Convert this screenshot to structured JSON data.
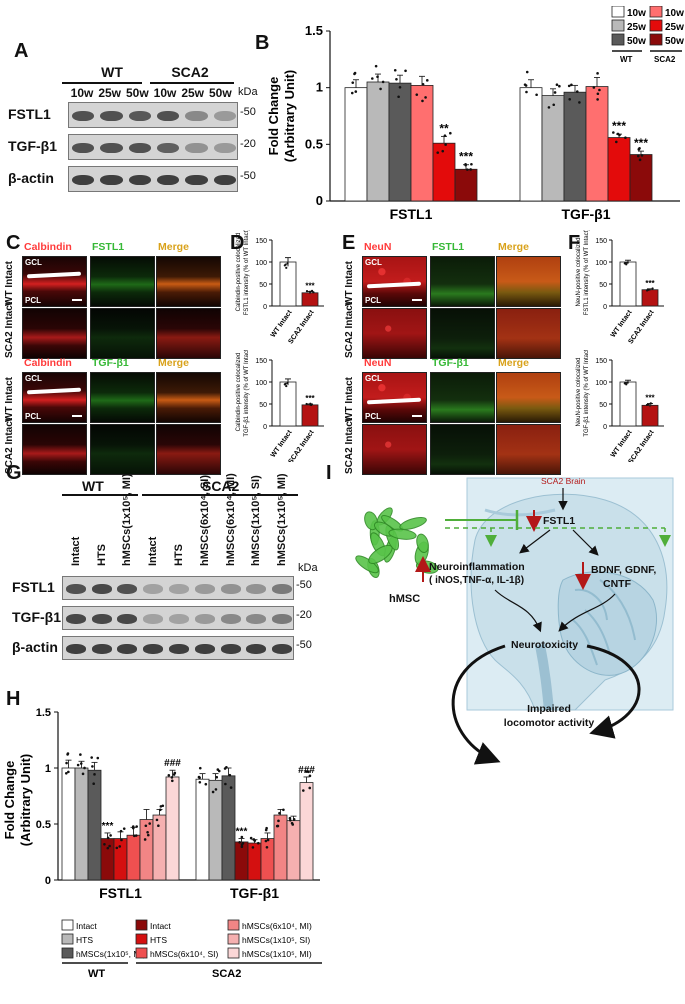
{
  "panel_letters": {
    "A": "A",
    "B": "B",
    "C": "C",
    "D": "D",
    "E": "E",
    "F": "F",
    "G": "G",
    "H": "H",
    "I": "I"
  },
  "blot_a": {
    "group_wt": "WT",
    "group_sca2": "SCA2",
    "lanes": [
      "10w",
      "25w",
      "50w",
      "10w",
      "25w",
      "50w"
    ],
    "kda": "kDa",
    "rows": [
      {
        "label": "FSTL1",
        "mw": "50",
        "bands": [
          0.8,
          0.8,
          0.75,
          0.8,
          0.45,
          0.35
        ]
      },
      {
        "label": "TGF-β1",
        "mw": "20",
        "bands": [
          0.8,
          0.8,
          0.8,
          0.7,
          0.4,
          0.35
        ]
      },
      {
        "label": "β-actin",
        "mw": "50",
        "bands": [
          0.9,
          0.9,
          0.9,
          0.9,
          0.9,
          0.9
        ]
      }
    ]
  },
  "chart_b": {
    "ylabel_1": "Fold Change",
    "ylabel_2": "(Arbitrary Unit)",
    "yticks": [
      "0",
      "0.5",
      "1",
      "1.5"
    ],
    "legend_wt": "WT",
    "legend_sca2": "SCA2",
    "legend": [
      {
        "label": "10w",
        "color": "#ffffff"
      },
      {
        "label": "25w",
        "color": "#b9b9b9"
      },
      {
        "label": "50w",
        "color": "#5a5a5a"
      },
      {
        "label": "10w",
        "color": "#ff6f6f"
      },
      {
        "label": "25w",
        "color": "#e30b0b"
      },
      {
        "label": "50w",
        "color": "#8b0a0a"
      }
    ]
  },
  "chart_data": [
    {
      "type": "bar",
      "id": "B",
      "categories": [
        "FSTL1",
        "TGF-β1"
      ],
      "ylim": [
        0,
        1.5
      ],
      "ylabel": "Fold Change (Arbitrary Unit)",
      "series": [
        {
          "name": "WT 10w",
          "color": "#ffffff",
          "values": [
            1.0,
            1.0
          ],
          "err": [
            0.07,
            0.07
          ]
        },
        {
          "name": "WT 25w",
          "color": "#b9b9b9",
          "values": [
            1.05,
            0.93
          ],
          "err": [
            0.07,
            0.06
          ]
        },
        {
          "name": "WT 50w",
          "color": "#5a5a5a",
          "values": [
            1.04,
            0.96
          ],
          "err": [
            0.07,
            0.06
          ]
        },
        {
          "name": "SCA2 10w",
          "color": "#ff6f6f",
          "values": [
            1.02,
            1.01
          ],
          "err": [
            0.08,
            0.08
          ]
        },
        {
          "name": "SCA2 25w",
          "color": "#e30b0b",
          "values": [
            0.51,
            0.56
          ],
          "err": [
            0.06,
            0.03
          ]
        },
        {
          "name": "SCA2 50w",
          "color": "#8b0a0a",
          "values": [
            0.28,
            0.41
          ],
          "err": [
            0.04,
            0.03
          ]
        }
      ],
      "significance": [
        {
          "category": 0,
          "series": 4,
          "mark": "**"
        },
        {
          "category": 0,
          "series": 5,
          "mark": "***"
        },
        {
          "category": 1,
          "series": 4,
          "mark": "***"
        },
        {
          "category": 1,
          "series": 5,
          "mark": "***"
        }
      ]
    },
    {
      "type": "bar",
      "id": "D-top",
      "categories": [
        "WT Intact",
        "SCA2 Intact"
      ],
      "values": [
        100,
        30
      ],
      "err": [
        10,
        3
      ],
      "colors": [
        "#ffffff",
        "#b41212"
      ],
      "ylim": [
        0,
        150
      ],
      "yticks": [
        "0",
        "50",
        "100",
        "150"
      ],
      "mark": "***"
    },
    {
      "type": "bar",
      "id": "D-bottom",
      "categories": [
        "WT Intact",
        "SCA2 Intact"
      ],
      "values": [
        100,
        48
      ],
      "err": [
        7,
        2
      ],
      "colors": [
        "#ffffff",
        "#b41212"
      ],
      "ylim": [
        0,
        150
      ],
      "yticks": [
        "0",
        "50",
        "100",
        "150"
      ],
      "mark": "***"
    },
    {
      "type": "bar",
      "id": "F-top",
      "categories": [
        "WT Intact",
        "SCA2 Intact"
      ],
      "values": [
        100,
        37
      ],
      "err": [
        4,
        2
      ],
      "colors": [
        "#ffffff",
        "#b41212"
      ],
      "ylim": [
        0,
        150
      ],
      "yticks": [
        "0",
        "50",
        "100",
        "150"
      ],
      "mark": "***"
    },
    {
      "type": "bar",
      "id": "F-bottom",
      "categories": [
        "WT Intact",
        "SCA2 Intact"
      ],
      "values": [
        100,
        47
      ],
      "err": [
        4,
        4
      ],
      "colors": [
        "#ffffff",
        "#b41212"
      ],
      "ylim": [
        0,
        150
      ],
      "yticks": [
        "0",
        "50",
        "100",
        "150"
      ],
      "mark": "***"
    },
    {
      "type": "bar",
      "id": "H",
      "categories": [
        "FSTL1",
        "TGF-β1"
      ],
      "ylim": [
        0,
        1.5
      ],
      "ylabel": "Fold Change (Arbitrary Unit)",
      "series": [
        {
          "name": "WT Intact",
          "color": "#ffffff",
          "values": [
            1.0,
            0.9
          ],
          "err": [
            0.07,
            0.05
          ]
        },
        {
          "name": "WT HTS",
          "color": "#b9b9b9",
          "values": [
            1.0,
            0.89
          ],
          "err": [
            0.06,
            0.06
          ]
        },
        {
          "name": "WT hMSCs(1x10⁵, MI)",
          "color": "#5a5a5a",
          "values": [
            0.98,
            0.93
          ],
          "err": [
            0.07,
            0.07
          ]
        },
        {
          "name": "SCA2 Intact",
          "color": "#8b0a0a",
          "values": [
            0.37,
            0.34
          ],
          "err": [
            0.05,
            0.03
          ]
        },
        {
          "name": "SCA2 HTS",
          "color": "#d41010",
          "values": [
            0.37,
            0.33
          ],
          "err": [
            0.06,
            0.03
          ]
        },
        {
          "name": "SCA2 hMSCs(6x10⁴, SI)",
          "color": "#ef5050",
          "values": [
            0.4,
            0.37
          ],
          "err": [
            0.07,
            0.05
          ]
        },
        {
          "name": "SCA2 hMSCs(6x10⁴, MI)",
          "color": "#f28585",
          "values": [
            0.54,
            0.58
          ],
          "err": [
            0.09,
            0.05
          ]
        },
        {
          "name": "SCA2 hMSCs(1x10⁵, SI)",
          "color": "#f5b0b0",
          "values": [
            0.58,
            0.53
          ],
          "err": [
            0.05,
            0.04
          ]
        },
        {
          "name": "SCA2 hMSCs(1x10⁵, MI)",
          "color": "#fbd7d7",
          "values": [
            0.92,
            0.87
          ],
          "err": [
            0.06,
            0.05
          ]
        }
      ],
      "significance": [
        {
          "category": 0,
          "series": 3,
          "mark": "***"
        },
        {
          "category": 0,
          "series": 8,
          "mark": "###"
        },
        {
          "category": 1,
          "series": 3,
          "mark": "***"
        },
        {
          "category": 1,
          "series": 8,
          "mark": "###"
        }
      ]
    }
  ],
  "panel_c": {
    "top_labels": {
      "red": "Calbindin",
      "green": "FSTL1",
      "merge": "Merge"
    },
    "bottom_labels": {
      "red": "Calbindin",
      "green": "TGF-β1",
      "merge": "Merge"
    },
    "row_wt": "WT Intact",
    "row_sca2": "SCA2 Intact",
    "gcl": "GCL",
    "pcl": "PCL"
  },
  "panel_d": {
    "ylabel_top_1": "Calbindin-positive colocalized",
    "ylabel_top_2": "FSTL1 intensity (% of WT Intact)",
    "ylabel_bottom_1": "Calbindin-positive colocalized",
    "ylabel_bottom_2": "TGF-β1 intensity (% of WT Intact)"
  },
  "panel_e": {
    "top_labels": {
      "red": "NeuN",
      "green": "FSTL1",
      "merge": "Merge"
    },
    "bottom_labels": {
      "red": "NeuN",
      "green": "TGF-β1",
      "merge": "Merge"
    },
    "row_wt": "WT Intact",
    "row_sca2": "SCA2 Intact",
    "gcl": "GCL",
    "pcl": "PCL"
  },
  "panel_f": {
    "ylabel_top_1": "NeuN-positive colocalized",
    "ylabel_top_2": "FSTL1 intensity (% of WT Intact)",
    "ylabel_bottom_1": "NeuN-positive colocalized",
    "ylabel_bottom_2": "TGF-β1 intensity (% of WT Intact)"
  },
  "blot_g": {
    "group_wt": "WT",
    "group_sca2": "SCA2",
    "lanes": [
      "Intact",
      "HTS",
      "hMSCs(1x10⁵, MI)",
      "Intact",
      "HTS",
      "hMSCs(6x10⁴, SI)",
      "hMSCs(6x10⁴, MI)",
      "hMSCs(1x10⁵, SI)",
      "hMSCs(1x10⁵, MI)"
    ],
    "kda": "kDa",
    "rows": [
      {
        "label": "FSTL1",
        "mw": "50",
        "bands": [
          0.8,
          0.85,
          0.8,
          0.3,
          0.3,
          0.35,
          0.4,
          0.4,
          0.55
        ]
      },
      {
        "label": "TGF-β1",
        "mw": "20",
        "bands": [
          0.85,
          0.85,
          0.85,
          0.3,
          0.3,
          0.35,
          0.45,
          0.45,
          0.55
        ]
      },
      {
        "label": "β-actin",
        "mw": "50",
        "bands": [
          0.9,
          0.9,
          0.9,
          0.9,
          0.9,
          0.9,
          0.9,
          0.9,
          0.9
        ]
      }
    ]
  },
  "chart_h": {
    "ylabel_1": "Fold Change",
    "ylabel_2": "(Arbitrary Unit)",
    "yticks": [
      "0",
      "0.5",
      "1",
      "1.5"
    ],
    "legend_wt_title": "WT",
    "legend_sca2_title": "SCA2",
    "legend_wt": [
      {
        "label": "Intact",
        "color": "#ffffff"
      },
      {
        "label": "HTS",
        "color": "#b9b9b9"
      },
      {
        "label": "hMSCs(1x10⁵, MI)",
        "color": "#5a5a5a"
      }
    ],
    "legend_sca2": [
      {
        "label": "Intact",
        "color": "#8b0a0a"
      },
      {
        "label": "HTS",
        "color": "#d41010"
      },
      {
        "label": "hMSCs(6x10⁴, SI)",
        "color": "#ef5050"
      },
      {
        "label": "hMSCs(6x10⁴, MI)",
        "color": "#f28585"
      },
      {
        "label": "hMSCs(1x10⁵, SI)",
        "color": "#f5b0b0"
      },
      {
        "label": "hMSCs(1x10⁵, MI)",
        "color": "#fbd7d7"
      }
    ]
  },
  "diagram_i": {
    "sca2_brain": "SCA2 Brain",
    "fstl1": "FSTL1",
    "hmsc": "hMSC",
    "neuroinflammation": "Neuroinflammation",
    "neuro_detail": "( iNOS,TNF-α, IL-1β)",
    "bdnf": "BDNF, GDNF,",
    "cntf": "CNTF",
    "neurotoxicity": "Neurotoxicity",
    "impaired_1": "Impaired",
    "impaired_2": "locomotor activity"
  }
}
